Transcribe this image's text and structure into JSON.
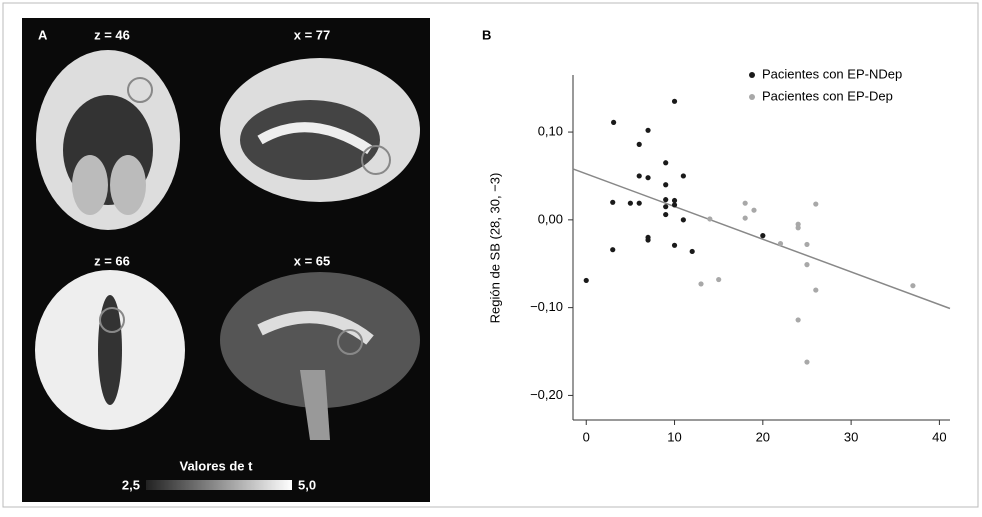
{
  "panel_a": {
    "label": "A",
    "views": [
      "z = 46",
      "x = 77",
      "z = 66",
      "x = 65"
    ],
    "colorbar": {
      "title": "Valores de t",
      "min_label": "2,5",
      "max_label": "5,0"
    }
  },
  "chart_data": {
    "type": "scatter",
    "panel_label": "B",
    "y_label": "Región de SB (28, 30, −3)",
    "xlim": [
      -1.5,
      41.2
    ],
    "xticks": [
      0,
      10,
      20,
      30,
      40
    ],
    "ylim": [
      -0.228,
      0.165
    ],
    "yticks": [
      {
        "value": -0.2,
        "label": "−0,20"
      },
      {
        "value": -0.1,
        "label": "−0,10"
      },
      {
        "value": 0,
        "label": "0,00"
      },
      {
        "value": 0.1,
        "label": "0,10"
      }
    ],
    "legend_position": "upper right",
    "series": [
      {
        "name": "Pacientes con EP-NDep",
        "color": "#1a1a1a",
        "x": [
          0,
          3.1,
          3,
          3,
          5,
          6,
          6,
          6,
          7,
          7,
          7,
          7,
          9,
          9,
          9,
          9,
          9,
          10,
          10,
          10,
          11,
          11,
          12,
          10,
          20
        ],
        "values": [
          -0.069,
          0.111,
          0.02,
          -0.034,
          0.019,
          0.019,
          0.086,
          0.05,
          0.102,
          0.048,
          -0.02,
          -0.023,
          0.065,
          0.04,
          0.023,
          0.015,
          0.006,
          0.135,
          0.022,
          -0.029,
          0.05,
          0,
          -0.036,
          0.017,
          -0.018
        ]
      },
      {
        "name": "Pacientes con EP-Dep",
        "color": "#a8a8a8",
        "x": [
          14,
          15,
          13,
          18,
          18,
          19,
          22,
          24,
          24,
          24,
          25,
          25,
          25,
          26,
          26,
          37
        ],
        "values": [
          0.001,
          -0.068,
          -0.073,
          0.019,
          0.002,
          0.011,
          -0.027,
          -0.005,
          -0.009,
          -0.114,
          -0.028,
          -0.051,
          -0.162,
          0.018,
          -0.08,
          -0.075
        ]
      }
    ],
    "fit_line": {
      "x": [
        -1.5,
        41.2
      ],
      "y": [
        0.058,
        -0.101
      ],
      "color": "#888888"
    }
  }
}
